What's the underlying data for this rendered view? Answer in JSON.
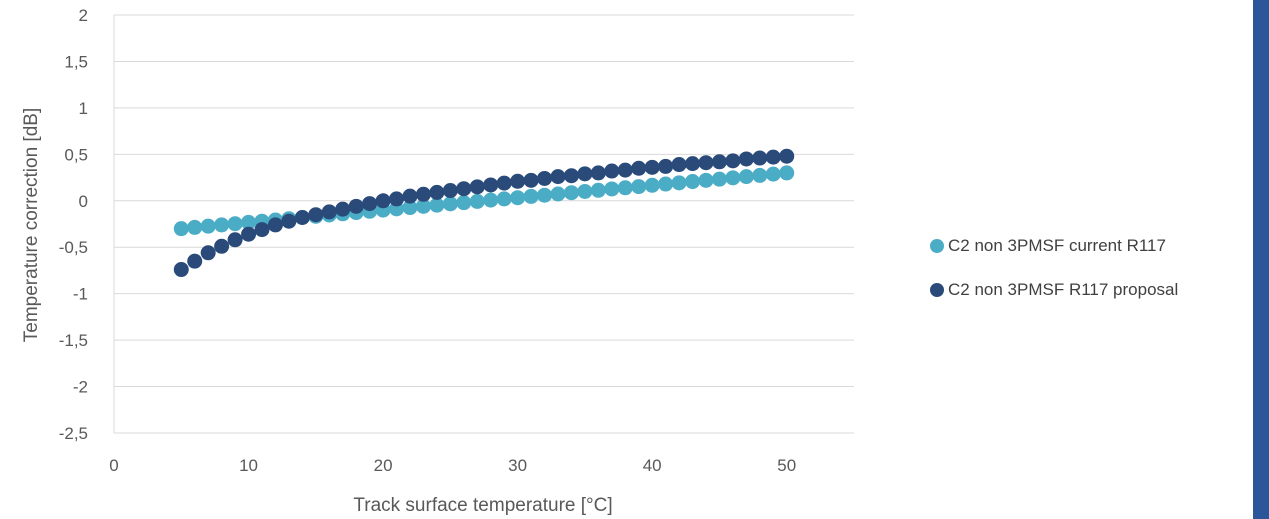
{
  "chart_data": {
    "type": "scatter",
    "title": "",
    "xlabel": "Track surface temperature [°C]",
    "ylabel": "Temperature correction [dB]",
    "xlim": [
      0,
      55
    ],
    "ylim": [
      -2.5,
      2
    ],
    "x_ticks": [
      0,
      10,
      20,
      30,
      40,
      50
    ],
    "x_tick_labels": [
      "0",
      "10",
      "20",
      "30",
      "40",
      "50"
    ],
    "y_ticks": [
      2,
      1.5,
      1,
      0.5,
      0,
      -0.5,
      -1,
      -1.5,
      -2,
      -2.5
    ],
    "y_tick_labels": [
      "2",
      "1,5",
      "1",
      "0,5",
      "0",
      "-0,5",
      "-1",
      "-1,5",
      "-2",
      "-2,5"
    ],
    "grid": "horizontal",
    "legend_position": "right",
    "x": [
      5,
      6,
      7,
      8,
      9,
      10,
      11,
      12,
      13,
      14,
      15,
      16,
      17,
      18,
      19,
      20,
      21,
      22,
      23,
      24,
      25,
      26,
      27,
      28,
      29,
      30,
      31,
      32,
      33,
      34,
      35,
      36,
      37,
      38,
      39,
      40,
      41,
      42,
      43,
      44,
      45,
      46,
      47,
      48,
      49,
      50
    ],
    "series": [
      {
        "name": "C2 non 3PMSF current R117",
        "color": "#4BACC6",
        "values": [
          -0.3,
          -0.287,
          -0.273,
          -0.26,
          -0.247,
          -0.233,
          -0.22,
          -0.207,
          -0.193,
          -0.18,
          -0.167,
          -0.153,
          -0.14,
          -0.127,
          -0.113,
          -0.1,
          -0.087,
          -0.073,
          -0.06,
          -0.047,
          -0.033,
          -0.02,
          -0.007,
          0.007,
          0.02,
          0.033,
          0.047,
          0.06,
          0.073,
          0.087,
          0.1,
          0.113,
          0.127,
          0.14,
          0.153,
          0.167,
          0.18,
          0.193,
          0.207,
          0.22,
          0.233,
          0.247,
          0.26,
          0.273,
          0.287,
          0.3
        ]
      },
      {
        "name": "C2 non 3PMSF R117 proposal",
        "color": "#2A4A7A",
        "values": [
          -0.74,
          -0.65,
          -0.56,
          -0.49,
          -0.42,
          -0.36,
          -0.31,
          -0.26,
          -0.22,
          -0.18,
          -0.15,
          -0.12,
          -0.09,
          -0.06,
          -0.03,
          0.0,
          0.02,
          0.05,
          0.07,
          0.09,
          0.11,
          0.13,
          0.15,
          0.17,
          0.19,
          0.21,
          0.22,
          0.24,
          0.26,
          0.27,
          0.29,
          0.3,
          0.32,
          0.33,
          0.35,
          0.36,
          0.37,
          0.39,
          0.4,
          0.41,
          0.42,
          0.43,
          0.45,
          0.46,
          0.47,
          0.48
        ]
      }
    ]
  },
  "side_bar_color": "#2B579A"
}
